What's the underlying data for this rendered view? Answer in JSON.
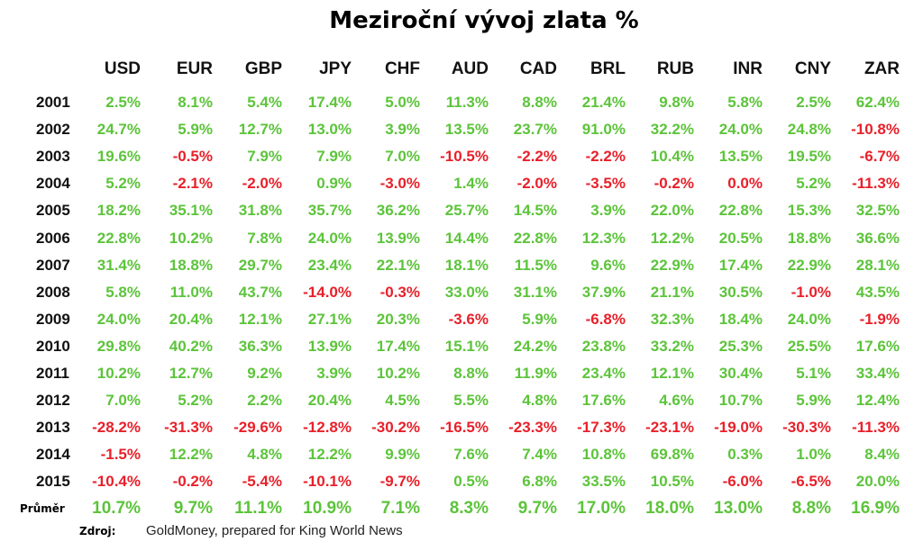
{
  "chart_data": {
    "type": "table",
    "title": "Meziroční vývoj zlata %",
    "columns": [
      "USD",
      "EUR",
      "GBP",
      "JPY",
      "CHF",
      "AUD",
      "CAD",
      "BRL",
      "RUB",
      "INR",
      "CNY",
      "ZAR"
    ],
    "rows": [
      {
        "label": "2001",
        "values": [
          "2.5%",
          "8.1%",
          "5.4%",
          "17.4%",
          "5.0%",
          "11.3%",
          "8.8%",
          "21.4%",
          "9.8%",
          "5.8%",
          "2.5%",
          "62.4%"
        ]
      },
      {
        "label": "2002",
        "values": [
          "24.7%",
          "5.9%",
          "12.7%",
          "13.0%",
          "3.9%",
          "13.5%",
          "23.7%",
          "91.0%",
          "32.2%",
          "24.0%",
          "24.8%",
          "-10.8%"
        ]
      },
      {
        "label": "2003",
        "values": [
          "19.6%",
          "-0.5%",
          "7.9%",
          "7.9%",
          "7.0%",
          "-10.5%",
          "-2.2%",
          "-2.2%",
          "10.4%",
          "13.5%",
          "19.5%",
          "-6.7%"
        ]
      },
      {
        "label": "2004",
        "values": [
          "5.2%",
          "-2.1%",
          "-2.0%",
          "0.9%",
          "-3.0%",
          "1.4%",
          "-2.0%",
          "-3.5%",
          "-0.2%",
          "0.0%",
          "5.2%",
          "-11.3%"
        ]
      },
      {
        "label": "2005",
        "values": [
          "18.2%",
          "35.1%",
          "31.8%",
          "35.7%",
          "36.2%",
          "25.7%",
          "14.5%",
          "3.9%",
          "22.0%",
          "22.8%",
          "15.3%",
          "32.5%"
        ]
      },
      {
        "label": "2006",
        "values": [
          "22.8%",
          "10.2%",
          "7.8%",
          "24.0%",
          "13.9%",
          "14.4%",
          "22.8%",
          "12.3%",
          "12.2%",
          "20.5%",
          "18.8%",
          "36.6%"
        ]
      },
      {
        "label": "2007",
        "values": [
          "31.4%",
          "18.8%",
          "29.7%",
          "23.4%",
          "22.1%",
          "18.1%",
          "11.5%",
          "9.6%",
          "22.9%",
          "17.4%",
          "22.9%",
          "28.1%"
        ]
      },
      {
        "label": "2008",
        "values": [
          "5.8%",
          "11.0%",
          "43.7%",
          "-14.0%",
          "-0.3%",
          "33.0%",
          "31.1%",
          "37.9%",
          "21.1%",
          "30.5%",
          "-1.0%",
          "43.5%"
        ]
      },
      {
        "label": "2009",
        "values": [
          "24.0%",
          "20.4%",
          "12.1%",
          "27.1%",
          "20.3%",
          "-3.6%",
          "5.9%",
          "-6.8%",
          "32.3%",
          "18.4%",
          "24.0%",
          "-1.9%"
        ]
      },
      {
        "label": "2010",
        "values": [
          "29.8%",
          "40.2%",
          "36.3%",
          "13.9%",
          "17.4%",
          "15.1%",
          "24.2%",
          "23.8%",
          "33.2%",
          "25.3%",
          "25.5%",
          "17.6%"
        ]
      },
      {
        "label": "2011",
        "values": [
          "10.2%",
          "12.7%",
          "9.2%",
          "3.9%",
          "10.2%",
          "8.8%",
          "11.9%",
          "23.4%",
          "12.1%",
          "30.4%",
          "5.1%",
          "33.4%"
        ]
      },
      {
        "label": "2012",
        "values": [
          "7.0%",
          "5.2%",
          "2.2%",
          "20.4%",
          "4.5%",
          "5.5%",
          "4.8%",
          "17.6%",
          "4.6%",
          "10.7%",
          "5.9%",
          "12.4%"
        ]
      },
      {
        "label": "2013",
        "values": [
          "-28.2%",
          "-31.3%",
          "-29.6%",
          "-12.8%",
          "-30.2%",
          "-16.5%",
          "-23.3%",
          "-17.3%",
          "-23.1%",
          "-19.0%",
          "-30.3%",
          "-11.3%"
        ]
      },
      {
        "label": "2014",
        "values": [
          "-1.5%",
          "12.2%",
          "4.8%",
          "12.2%",
          "9.9%",
          "7.6%",
          "7.4%",
          "10.8%",
          "69.8%",
          "0.3%",
          "1.0%",
          "8.4%"
        ]
      },
      {
        "label": "2015",
        "values": [
          "-10.4%",
          "-0.2%",
          "-5.4%",
          "-10.1%",
          "-9.7%",
          "0.5%",
          "6.8%",
          "33.5%",
          "10.5%",
          "-6.0%",
          "-6.5%",
          "20.0%"
        ]
      }
    ],
    "average": {
      "label": "Průměr",
      "values": [
        "10.7%",
        "9.7%",
        "11.1%",
        "10.9%",
        "7.1%",
        "8.3%",
        "9.7%",
        "17.0%",
        "18.0%",
        "13.0%",
        "8.8%",
        "16.9%"
      ]
    },
    "source_label": "Zdroj:",
    "source_text": "GoldMoney, prepared for King World News",
    "colors": {
      "positive": "#5cc43a",
      "negative": "#e8202a",
      "zero": "#e8202a",
      "header": "#111111"
    }
  }
}
